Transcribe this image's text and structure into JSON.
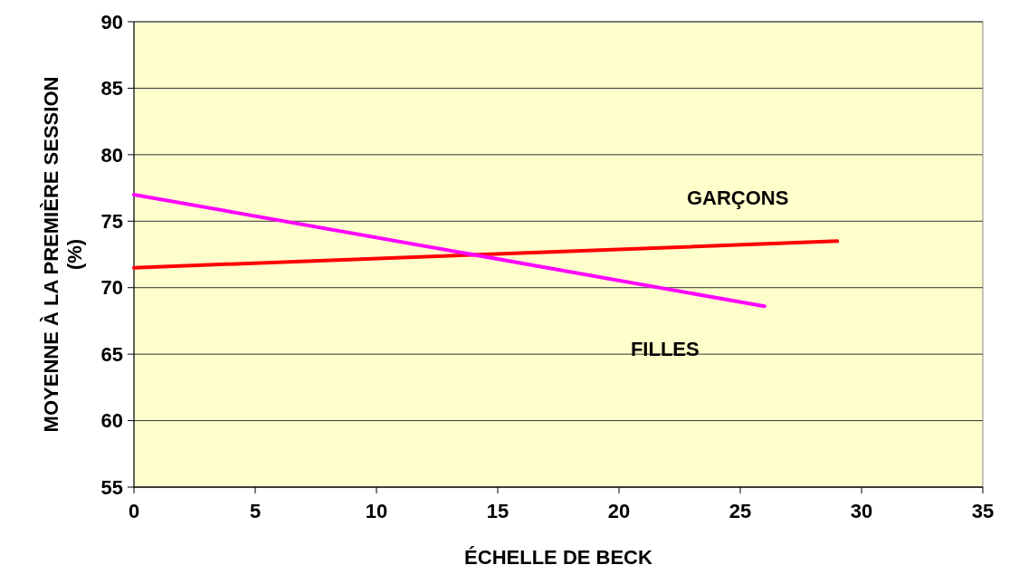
{
  "chart_data": {
    "type": "line",
    "xlabel": "ÉCHELLE DE BECK",
    "ylabel": "MOYENNE À LA PREMIÈRE SESSION (%)",
    "xlim": [
      0,
      35
    ],
    "xticks": [
      0,
      5,
      10,
      15,
      20,
      25,
      30,
      35
    ],
    "ylim": [
      55,
      90
    ],
    "yticks": [
      55,
      60,
      65,
      70,
      75,
      80,
      85,
      90
    ],
    "grid": "y",
    "series": [
      {
        "name": "GARÇONS",
        "color": "#ff0000",
        "x": [
          0,
          29
        ],
        "values": [
          71.5,
          73.5
        ]
      },
      {
        "name": "FILLES",
        "color": "#ff00ff",
        "x": [
          0,
          26
        ],
        "values": [
          77,
          68.6
        ]
      }
    ]
  }
}
